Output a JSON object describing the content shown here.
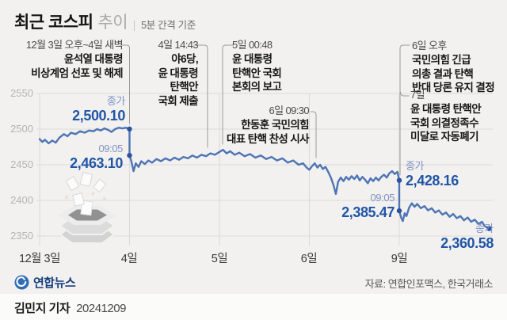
{
  "header": {
    "title_bold": "최근 코스피",
    "title_light": "추이",
    "subtitle": "5분 간격 기준"
  },
  "chart_data": {
    "type": "line",
    "title": "최근 코스피 추이 (5분 간격 기준)",
    "ylabel": "KOSPI",
    "ylim": [
      2340,
      2560
    ],
    "grid": true,
    "y_ticks": [
      2550,
      2500,
      2450,
      2400,
      2350
    ],
    "x_ticks": [
      {
        "t": 0,
        "label": "12월 3일"
      },
      {
        "t": 1,
        "label": "4일"
      },
      {
        "t": 2,
        "label": "5일"
      },
      {
        "t": 3,
        "label": "6일"
      },
      {
        "t": 4,
        "label": "9일"
      }
    ],
    "series": [
      {
        "name": "코스피",
        "points": [
          [
            0.0,
            2486
          ],
          [
            0.03,
            2482
          ],
          [
            0.06,
            2485
          ],
          [
            0.1,
            2480
          ],
          [
            0.14,
            2484
          ],
          [
            0.18,
            2481
          ],
          [
            0.22,
            2488
          ],
          [
            0.27,
            2493
          ],
          [
            0.31,
            2490
          ],
          [
            0.35,
            2495
          ],
          [
            0.4,
            2493
          ],
          [
            0.45,
            2497
          ],
          [
            0.5,
            2495
          ],
          [
            0.55,
            2498
          ],
          [
            0.6,
            2497
          ],
          [
            0.64,
            2500
          ],
          [
            0.68,
            2498
          ],
          [
            0.72,
            2501
          ],
          [
            0.76,
            2499
          ],
          [
            0.8,
            2496
          ],
          [
            0.84,
            2500
          ],
          [
            0.88,
            2502
          ],
          [
            0.92,
            2501
          ],
          [
            0.96,
            2502
          ],
          [
            1.0,
            2500.1
          ],
          [
            1.0,
            2463.1
          ],
          [
            1.02,
            2455
          ],
          [
            1.045,
            2441
          ],
          [
            1.07,
            2452
          ],
          [
            1.1,
            2447
          ],
          [
            1.13,
            2455
          ],
          [
            1.17,
            2451
          ],
          [
            1.21,
            2456
          ],
          [
            1.25,
            2453
          ],
          [
            1.3,
            2458
          ],
          [
            1.35,
            2455
          ],
          [
            1.4,
            2459
          ],
          [
            1.45,
            2456
          ],
          [
            1.5,
            2460
          ],
          [
            1.55,
            2457
          ],
          [
            1.6,
            2461
          ],
          [
            1.65,
            2459
          ],
          [
            1.7,
            2463
          ],
          [
            1.75,
            2460
          ],
          [
            1.8,
            2464
          ],
          [
            1.85,
            2462
          ],
          [
            1.9,
            2466
          ],
          [
            1.95,
            2464
          ],
          [
            2.0,
            2468
          ],
          [
            2.04,
            2471
          ],
          [
            2.08,
            2466
          ],
          [
            2.12,
            2469
          ],
          [
            2.17,
            2464
          ],
          [
            2.22,
            2467
          ],
          [
            2.28,
            2462
          ],
          [
            2.34,
            2465
          ],
          [
            2.4,
            2460
          ],
          [
            2.46,
            2463
          ],
          [
            2.52,
            2458
          ],
          [
            2.58,
            2461
          ],
          [
            2.64,
            2456
          ],
          [
            2.7,
            2459
          ],
          [
            2.76,
            2453
          ],
          [
            2.82,
            2456
          ],
          [
            2.88,
            2450
          ],
          [
            2.93,
            2452
          ],
          [
            2.97,
            2446
          ],
          [
            3.0,
            2443
          ],
          [
            3.03,
            2448
          ],
          [
            3.06,
            2452
          ],
          [
            3.09,
            2446
          ],
          [
            3.12,
            2450
          ],
          [
            3.15,
            2444
          ],
          [
            3.18,
            2447
          ],
          [
            3.21,
            2440
          ],
          [
            3.24,
            2432
          ],
          [
            3.27,
            2421
          ],
          [
            3.295,
            2409
          ],
          [
            3.32,
            2426
          ],
          [
            3.35,
            2432
          ],
          [
            3.38,
            2427
          ],
          [
            3.41,
            2433
          ],
          [
            3.44,
            2429
          ],
          [
            3.47,
            2434
          ],
          [
            3.5,
            2430
          ],
          [
            3.53,
            2435
          ],
          [
            3.56,
            2428
          ],
          [
            3.59,
            2433
          ],
          [
            3.62,
            2429
          ],
          [
            3.65,
            2424
          ],
          [
            3.68,
            2431
          ],
          [
            3.71,
            2427
          ],
          [
            3.74,
            2432
          ],
          [
            3.77,
            2428
          ],
          [
            3.8,
            2433
          ],
          [
            3.83,
            2436
          ],
          [
            3.86,
            2432
          ],
          [
            3.89,
            2438
          ],
          [
            3.92,
            2441
          ],
          [
            3.95,
            2437
          ],
          [
            3.98,
            2440
          ],
          [
            4.0,
            2428.16
          ],
          [
            4.0,
            2385.47
          ],
          [
            4.02,
            2376
          ],
          [
            4.04,
            2371
          ],
          [
            4.06,
            2382
          ],
          [
            4.08,
            2378
          ],
          [
            4.11,
            2390
          ],
          [
            4.14,
            2396
          ],
          [
            4.17,
            2391
          ],
          [
            4.2,
            2395
          ],
          [
            4.24,
            2389
          ],
          [
            4.28,
            2392
          ],
          [
            4.32,
            2386
          ],
          [
            4.36,
            2389
          ],
          [
            4.4,
            2383
          ],
          [
            4.44,
            2386
          ],
          [
            4.48,
            2380
          ],
          [
            4.52,
            2383
          ],
          [
            4.56,
            2377
          ],
          [
            4.6,
            2381
          ],
          [
            4.64,
            2375
          ],
          [
            4.68,
            2378
          ],
          [
            4.72,
            2372
          ],
          [
            4.76,
            2376
          ],
          [
            4.8,
            2370
          ],
          [
            4.84,
            2373
          ],
          [
            4.88,
            2367
          ],
          [
            4.92,
            2370
          ],
          [
            4.95,
            2364
          ],
          [
            4.98,
            2362
          ],
          [
            5.0,
            2360.58
          ]
        ]
      }
    ],
    "markers": [
      {
        "t": 1,
        "price": 2500.1,
        "label": "종가",
        "value": "2,500.10"
      },
      {
        "t": 1,
        "price": 2463.1,
        "label": "09:05",
        "value": "2,463.10"
      },
      {
        "t": 4,
        "price": 2428.16,
        "label": "종가",
        "value": "2,428.16"
      },
      {
        "t": 4,
        "price": 2385.47,
        "label": "09:05",
        "value": "2,385.47"
      },
      {
        "t": 5,
        "price": 2360.58,
        "label": "종가",
        "value": "2,360.58"
      }
    ]
  },
  "annotations": [
    {
      "date": "12월 3일 오후~4일 새벽",
      "lines": [
        "윤석열 대통령",
        "비상계엄 선포 및 해제"
      ]
    },
    {
      "date": "4일 14:43",
      "lines": [
        "야6당,",
        "윤 대통령",
        "탄핵안",
        "국회 제출"
      ]
    },
    {
      "date": "5일 00:48",
      "lines": [
        "윤 대통령",
        "탄핵안 국회",
        "본회의 보고"
      ]
    },
    {
      "date": "6일 09:30",
      "lines": [
        "한동훈 국민의힘",
        "대표 탄핵 찬성 시사"
      ]
    },
    {
      "date": "6일 오후",
      "lines": [
        "국민의힘 긴급",
        "의총 결과 탄핵",
        "반대 당론 유지 결정"
      ]
    },
    {
      "date": "7일",
      "lines": [
        "윤 대통령 탄핵안",
        "국회 의결정족수",
        "미달로 자동폐기"
      ]
    }
  ],
  "footer": {
    "logo_text": "연합뉴스",
    "source": "자료: 연합인포맥스, 한국거래소"
  },
  "credit": {
    "reporter": "김민지 기자",
    "date": "20241209"
  },
  "colors": {
    "line": "#4d74b5",
    "marker_dot": "#2d519f",
    "value_text": "#2156a7",
    "tag_text": "#8193c5",
    "connector": "#9c9c9c"
  }
}
